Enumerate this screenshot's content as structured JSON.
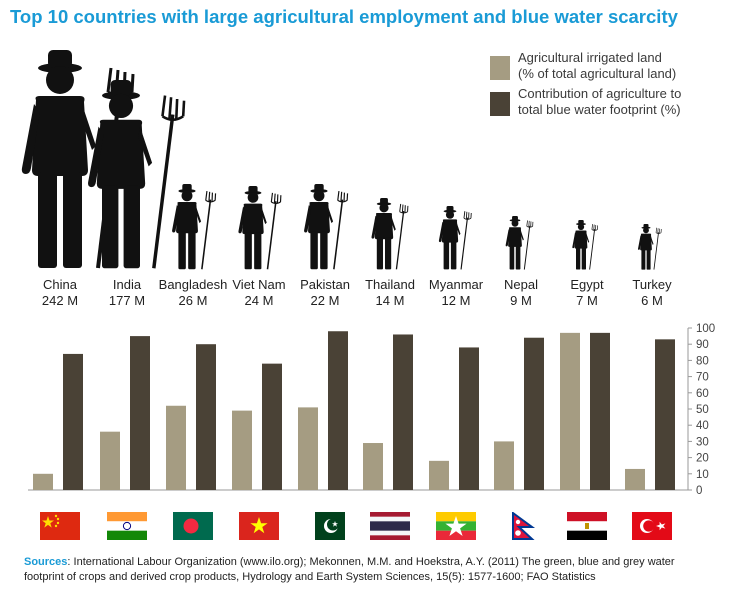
{
  "title": "Top 10 countries with large agricultural employment and blue water scarcity",
  "colors": {
    "title": "#1a9bd6",
    "irrigated": "#a59c82",
    "footprint": "#4a4236",
    "figure": "#111111",
    "axis": "#444444"
  },
  "legend": {
    "items": [
      {
        "line1": "Agricultural irrigated land",
        "line2": "(% of total agricultural land)",
        "color": "#a59c82"
      },
      {
        "line1": "Contribution of agriculture to",
        "line2": "total blue water footprint (%)",
        "color": "#4a4236"
      }
    ]
  },
  "countries": [
    {
      "name": "China",
      "employment": "242 M",
      "flag": "china-flag"
    },
    {
      "name": "India",
      "employment": "177 M",
      "flag": "india-flag"
    },
    {
      "name": "Bangladesh",
      "employment": "26 M",
      "flag": "bangladesh-flag"
    },
    {
      "name": "Viet Nam",
      "employment": "24 M",
      "flag": "vietnam-flag"
    },
    {
      "name": "Pakistan",
      "employment": "22 M",
      "flag": "pakistan-flag"
    },
    {
      "name": "Thailand",
      "employment": "14 M",
      "flag": "thailand-flag"
    },
    {
      "name": "Myanmar",
      "employment": "12 M",
      "flag": "myanmar-flag"
    },
    {
      "name": "Nepal",
      "employment": "9 M",
      "flag": "nepal-flag"
    },
    {
      "name": "Egypt",
      "employment": "7 M",
      "flag": "egypt-flag"
    },
    {
      "name": "Turkey",
      "employment": "6 M",
      "flag": "turkey-flag"
    }
  ],
  "chart_data": {
    "type": "bar",
    "categories": [
      "China",
      "India",
      "Bangladesh",
      "Viet Nam",
      "Pakistan",
      "Thailand",
      "Myanmar",
      "Nepal",
      "Egypt",
      "Turkey"
    ],
    "series": [
      {
        "name": "Agricultural irrigated land (% of total agricultural land)",
        "values": [
          10,
          36,
          52,
          49,
          51,
          29,
          18,
          30,
          97,
          13
        ]
      },
      {
        "name": "Contribution of agriculture to total blue water footprint (%)",
        "values": [
          84,
          95,
          90,
          78,
          98,
          96,
          88,
          94,
          97,
          93
        ]
      }
    ],
    "yticks": [
      0,
      10,
      20,
      30,
      40,
      50,
      60,
      70,
      80,
      90,
      100
    ],
    "ylim": [
      0,
      100
    ],
    "grid": false,
    "y_axis_side": "right",
    "figure_heights_by_employment": [
      242,
      177,
      26,
      24,
      22,
      14,
      12,
      9,
      7,
      6
    ]
  },
  "sources": {
    "label": "Sources",
    "text": ": International Labour Organization (www.ilo.org); Mekonnen, M.M. and Hoekstra, A.Y. (2011) The green, blue and grey water footprint of crops and derived crop products, Hydrology and Earth System Sciences, 15(5): 1577-1600; FAO Statistics"
  }
}
